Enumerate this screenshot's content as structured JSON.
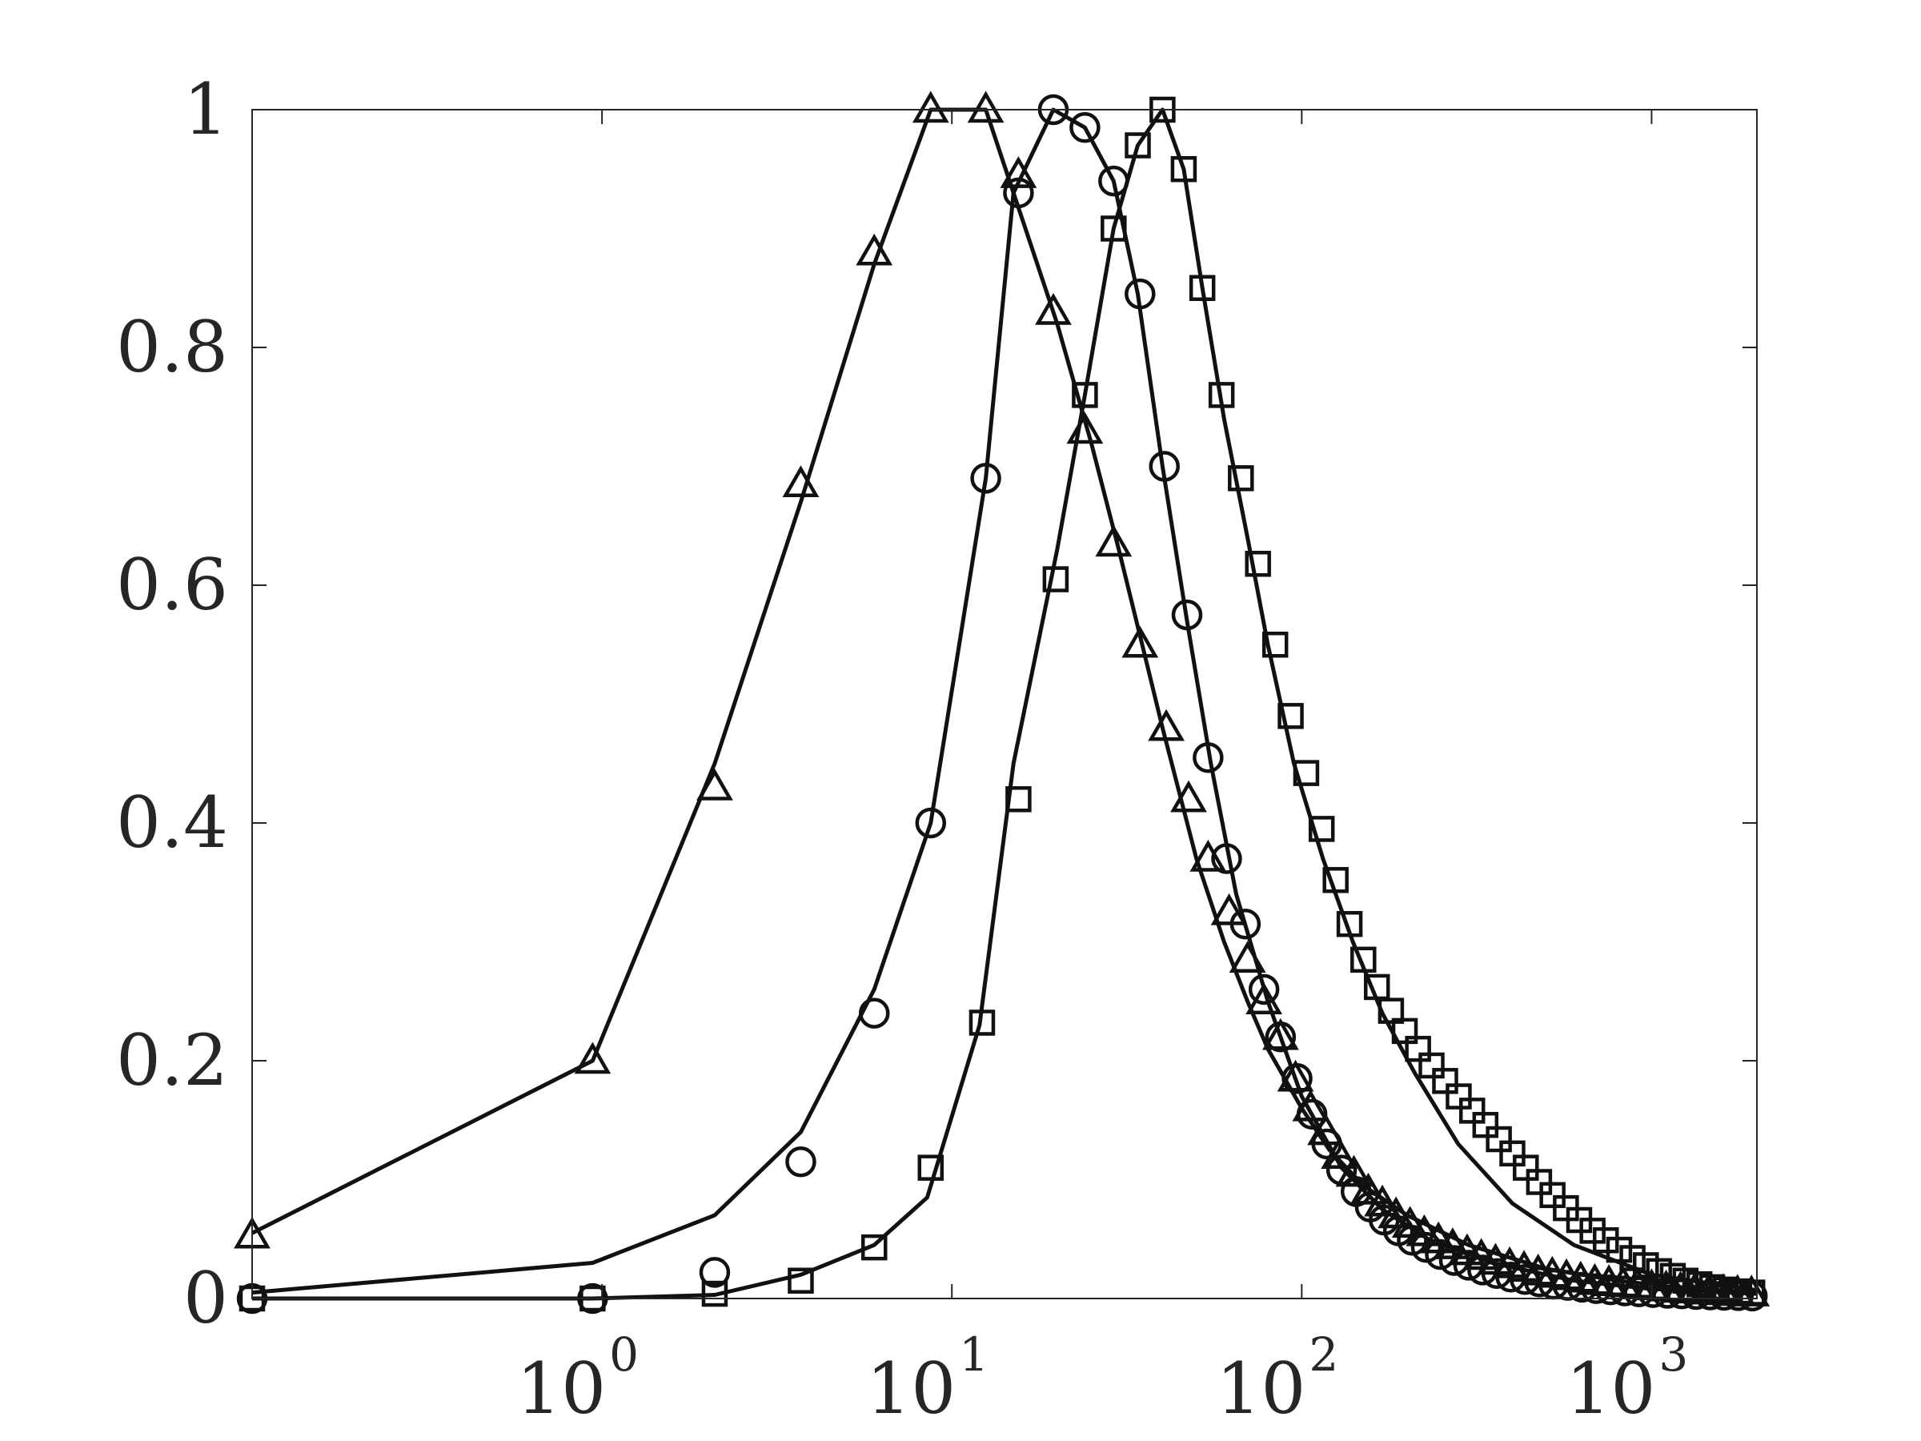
{
  "chart_data": {
    "type": "line",
    "title": "",
    "xlabel": "",
    "ylabel": "",
    "xscale": "log",
    "xlim": [
      0.1,
      2000
    ],
    "ylim": [
      0,
      1
    ],
    "grid": false,
    "legend": "none",
    "yticks": [
      0,
      0.2,
      0.4,
      0.6,
      0.8,
      1
    ],
    "ytick_labels": [
      "0",
      "0.2",
      "0.4",
      "0.6",
      "0.8",
      "1"
    ],
    "xticks": [
      1,
      10,
      100,
      1000
    ],
    "xtick_labels": [
      {
        "base": "10",
        "exp": "0"
      },
      {
        "base": "10",
        "exp": "1"
      },
      {
        "base": "10",
        "exp": "2"
      },
      {
        "base": "10",
        "exp": "3"
      }
    ],
    "series": [
      {
        "marker": "triangle",
        "curve": {
          "x": [
            0.1,
            0.94,
            2.1,
            3.7,
            6,
            8.7,
            12.5,
            15,
            20,
            25,
            30,
            35,
            40,
            50,
            60,
            70,
            80,
            100,
            120,
            150,
            200,
            300,
            500,
            800,
            1200,
            2000
          ],
          "y": [
            0.055,
            0.2,
            0.45,
            0.67,
            0.87,
            1,
            1,
            0.93,
            0.82,
            0.72,
            0.63,
            0.55,
            0.48,
            0.37,
            0.3,
            0.25,
            0.21,
            0.16,
            0.125,
            0.095,
            0.07,
            0.045,
            0.025,
            0.015,
            0.009,
            0.005
          ]
        },
        "markers": {
          "x": [
            0.1,
            0.94,
            2.1,
            3.7,
            6,
            8.7,
            12.5,
            15.5,
            19.5,
            24,
            29,
            34.5,
            41,
            47.5,
            54,
            62,
            70,
            78,
            87,
            96,
            106,
            117,
            128,
            141,
            155,
            170,
            186,
            204,
            224,
            246,
            270,
            297,
            326,
            358,
            393,
            432,
            474,
            520,
            571,
            627,
            688,
            755,
            829,
            910,
            1000,
            1100,
            1210,
            1330,
            1460,
            1600,
            1760,
            1930
          ],
          "y": [
            0.053,
            0.2,
            0.43,
            0.685,
            0.88,
            1,
            1,
            0.945,
            0.83,
            0.73,
            0.635,
            0.55,
            0.48,
            0.42,
            0.37,
            0.325,
            0.285,
            0.25,
            0.22,
            0.185,
            0.16,
            0.14,
            0.12,
            0.105,
            0.09,
            0.08,
            0.07,
            0.062,
            0.055,
            0.049,
            0.044,
            0.039,
            0.035,
            0.031,
            0.028,
            0.025,
            0.022,
            0.02,
            0.018,
            0.016,
            0.014,
            0.013,
            0.012,
            0.011,
            0.0095,
            0.0085,
            0.0075,
            0.0068,
            0.006,
            0.0054,
            0.0048,
            0.0043
          ]
        }
      },
      {
        "marker": "circle",
        "curve": {
          "x": [
            0.1,
            0.94,
            2.1,
            3.7,
            6,
            8.7,
            12.5,
            15,
            19.5,
            24,
            29,
            34,
            40,
            47,
            55,
            65,
            80,
            100,
            130,
            170,
            230,
            350,
            600,
            1000,
            2000
          ],
          "y": [
            0.005,
            0.03,
            0.07,
            0.14,
            0.26,
            0.4,
            0.69,
            0.93,
            1,
            0.985,
            0.94,
            0.845,
            0.7,
            0.57,
            0.45,
            0.34,
            0.25,
            0.17,
            0.11,
            0.075,
            0.05,
            0.03,
            0.015,
            0.008,
            0.004
          ]
        },
        "markers": {
          "x": [
            0.1,
            0.94,
            2.1,
            3.7,
            6,
            8.7,
            12.5,
            15.5,
            19.5,
            24,
            29,
            34.5,
            40.5,
            47,
            54,
            61,
            69,
            78,
            87,
            97,
            107,
            118,
            130,
            143,
            157,
            172,
            189,
            207,
            227,
            249,
            273,
            300,
            329,
            361,
            396,
            435,
            478,
            525,
            576,
            633,
            695,
            763,
            838,
            920,
            1010,
            1110,
            1220,
            1340,
            1470,
            1610,
            1770,
            1940
          ],
          "y": [
            0.0,
            0.0,
            0.022,
            0.115,
            0.24,
            0.4,
            0.69,
            0.93,
            1,
            0.985,
            0.94,
            0.845,
            0.7,
            0.575,
            0.455,
            0.37,
            0.315,
            0.26,
            0.22,
            0.185,
            0.155,
            0.13,
            0.108,
            0.09,
            0.077,
            0.066,
            0.057,
            0.049,
            0.043,
            0.037,
            0.032,
            0.028,
            0.024,
            0.021,
            0.018,
            0.016,
            0.014,
            0.012,
            0.011,
            0.0095,
            0.0083,
            0.0073,
            0.0064,
            0.0056,
            0.005,
            0.0044,
            0.0039,
            0.0034,
            0.003,
            0.0027,
            0.0024,
            0.0021
          ]
        }
      },
      {
        "marker": "square",
        "curve": {
          "x": [
            0.1,
            0.94,
            2.1,
            3.7,
            6,
            8.5,
            12,
            15,
            20,
            24,
            29,
            34,
            40,
            46,
            52,
            60,
            70,
            80,
            95,
            115,
            140,
            170,
            210,
            280,
            400,
            600,
            1000,
            2000
          ],
          "y": [
            0.0,
            0.0,
            0.003,
            0.02,
            0.045,
            0.085,
            0.23,
            0.45,
            0.63,
            0.76,
            0.9,
            0.97,
            1,
            0.95,
            0.85,
            0.74,
            0.64,
            0.55,
            0.45,
            0.37,
            0.3,
            0.24,
            0.19,
            0.13,
            0.08,
            0.045,
            0.02,
            0.007
          ]
        },
        "markers": {
          "x": [
            0.1,
            0.94,
            2.1,
            3.7,
            6,
            8.7,
            12.2,
            15.5,
            19.8,
            24,
            29,
            34,
            40,
            46,
            52,
            59,
            67,
            75,
            84,
            93,
            103,
            114,
            125,
            137,
            150,
            164,
            180,
            197,
            215,
            235,
            257,
            281,
            307,
            335,
            366,
            400,
            437,
            477,
            521,
            569,
            621,
            678,
            740,
            808,
            882,
            963,
            1050,
            1150,
            1250,
            1370,
            1490,
            1630,
            1780,
            1940
          ],
          "y": [
            0.0,
            0.0,
            0.004,
            0.015,
            0.043,
            0.11,
            0.232,
            0.42,
            0.605,
            0.76,
            0.9,
            0.97,
            1,
            0.95,
            0.85,
            0.76,
            0.69,
            0.618,
            0.55,
            0.49,
            0.442,
            0.395,
            0.352,
            0.315,
            0.285,
            0.262,
            0.242,
            0.225,
            0.21,
            0.196,
            0.183,
            0.17,
            0.158,
            0.146,
            0.134,
            0.122,
            0.11,
            0.098,
            0.087,
            0.076,
            0.066,
            0.057,
            0.049,
            0.041,
            0.034,
            0.028,
            0.023,
            0.019,
            0.015,
            0.012,
            0.0095,
            0.0075,
            0.006,
            0.005
          ]
        }
      }
    ]
  }
}
